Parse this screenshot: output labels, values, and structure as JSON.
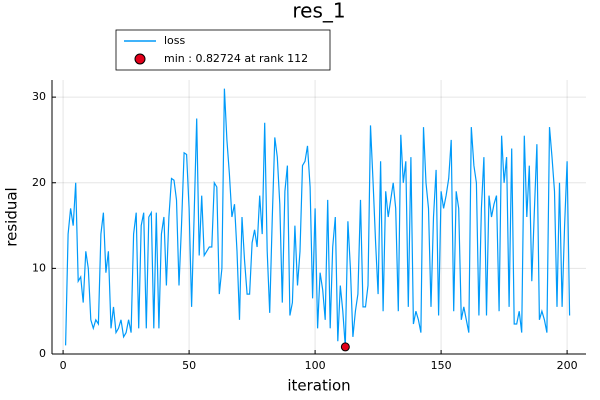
{
  "chart_data": {
    "type": "line",
    "title": "res_1",
    "x_label": "iteration",
    "y_label": "residual",
    "xlim": [
      -4.4,
      207.5
    ],
    "ylim": [
      0,
      32
    ],
    "xticks": [
      0,
      50,
      100,
      150,
      200
    ],
    "yticks": [
      0,
      10,
      20,
      30
    ],
    "grid": true,
    "legend": "top-left",
    "series": [
      {
        "name": "loss",
        "color": "#009af9",
        "kind": "line",
        "x": [
          1,
          2,
          3,
          4,
          5,
          6,
          7,
          8,
          9,
          10,
          11,
          12,
          13,
          14,
          15,
          16,
          17,
          18,
          19,
          20,
          21,
          22,
          23,
          24,
          25,
          26,
          27,
          28,
          29,
          30,
          31,
          32,
          33,
          34,
          35,
          36,
          37,
          38,
          39,
          40,
          41,
          42,
          43,
          44,
          45,
          46,
          47,
          48,
          49,
          50,
          51,
          52,
          53,
          54,
          55,
          56,
          57,
          58,
          59,
          60,
          61,
          62,
          63,
          64,
          65,
          66,
          67,
          68,
          69,
          70,
          71,
          72,
          73,
          74,
          75,
          76,
          77,
          78,
          79,
          80,
          81,
          82,
          83,
          84,
          85,
          86,
          87,
          88,
          89,
          90,
          91,
          92,
          93,
          94,
          95,
          96,
          97,
          98,
          99,
          100,
          101,
          102,
          103,
          104,
          105,
          106,
          107,
          108,
          109,
          110,
          111,
          112,
          113,
          114,
          115,
          116,
          117,
          118,
          119,
          120,
          121,
          122,
          123,
          124,
          125,
          126,
          127,
          128,
          129,
          130,
          131,
          132,
          133,
          134,
          135,
          136,
          137,
          138,
          139,
          140,
          141,
          142,
          143,
          144,
          145,
          146,
          147,
          148,
          149,
          150,
          151,
          152,
          153,
          154,
          155,
          156,
          157,
          158,
          159,
          160,
          161,
          162,
          163,
          164,
          165,
          166,
          167,
          168,
          169,
          170,
          171,
          172,
          173,
          174,
          175,
          176,
          177,
          178,
          179,
          180,
          181,
          182,
          183,
          184,
          185,
          186,
          187,
          188,
          189,
          190,
          191,
          192,
          193,
          194,
          195,
          196,
          197,
          198,
          199,
          200,
          201
        ],
        "values": [
          1,
          14,
          17,
          15,
          20,
          8.5,
          9,
          6,
          12,
          10,
          4,
          3,
          4,
          3.5,
          14,
          16.5,
          9.5,
          12,
          3,
          5.5,
          2.5,
          3,
          4,
          2,
          2.5,
          4,
          2.5,
          14,
          16.5,
          3,
          15,
          16.5,
          3,
          16,
          16.5,
          3,
          16.5,
          3,
          14,
          16,
          8,
          16,
          20.5,
          20.3,
          18,
          8,
          15,
          23.5,
          23.3,
          17,
          5.5,
          16,
          27.5,
          11.5,
          18.5,
          11.5,
          12,
          12.5,
          12.5,
          20,
          19.5,
          7,
          10,
          31,
          25,
          21,
          16,
          17.5,
          12,
          4,
          16,
          11,
          7,
          7,
          13,
          14.5,
          12.5,
          18.5,
          14,
          27,
          12,
          4.8,
          16,
          25.3,
          23,
          17.5,
          6,
          19,
          22,
          4.5,
          6,
          15,
          8,
          12,
          22,
          22.5,
          24.3,
          19.5,
          6.5,
          17,
          3,
          9.5,
          7.5,
          4,
          18,
          3,
          12.5,
          16,
          1.5,
          8,
          5,
          0.82724,
          15.5,
          10,
          2,
          5,
          7,
          18,
          5.5,
          5.5,
          8,
          26.7,
          20,
          13,
          7,
          22.5,
          5,
          19,
          16,
          18,
          20,
          17,
          5,
          25.6,
          20,
          22.5,
          5.5,
          23,
          3.5,
          5,
          4,
          2.5,
          26.5,
          20,
          17,
          5.5,
          16,
          21.5,
          4.5,
          19,
          17,
          18.5,
          20.5,
          25,
          5,
          19,
          17,
          4,
          5.5,
          4,
          2.5,
          26.5,
          22,
          20,
          4.5,
          17,
          23,
          4.5,
          18.5,
          16,
          17.5,
          18.5,
          5,
          25.5,
          20,
          23,
          5.5,
          24,
          3.5,
          3.5,
          5,
          2.5,
          25.5,
          16,
          22,
          8.5,
          16.5,
          24.5,
          4,
          5,
          4,
          2.5,
          26.5,
          23,
          19,
          5.5,
          20,
          5.5,
          15,
          22.5,
          4.5
        ]
      },
      {
        "name": "min : 0.82724 at rank 112",
        "color": "#e2001a",
        "kind": "scatter",
        "x": [
          112
        ],
        "values": [
          0.82724
        ]
      }
    ]
  }
}
